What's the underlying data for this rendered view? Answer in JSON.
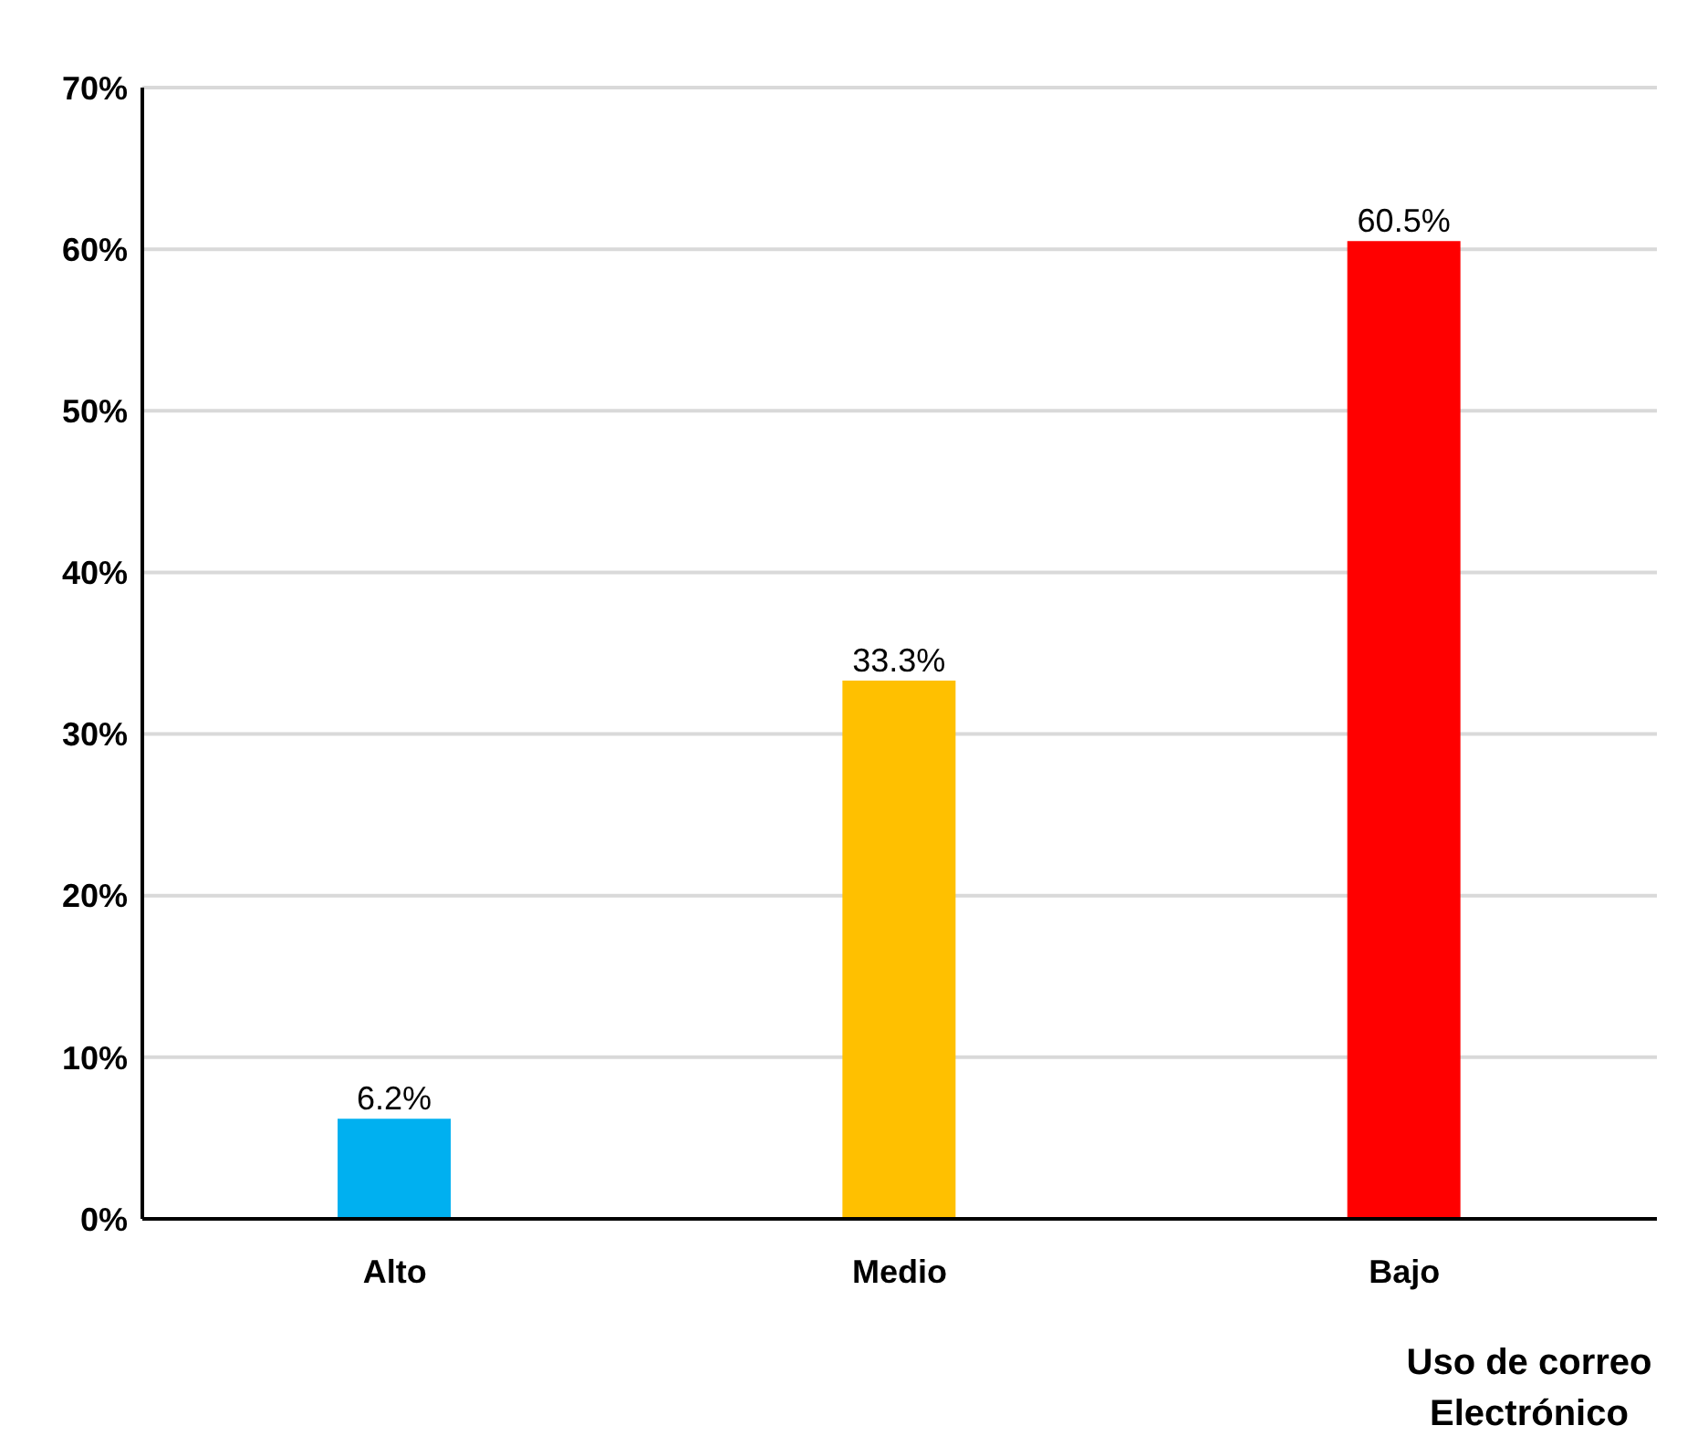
{
  "chart_data": {
    "type": "bar",
    "xlabel": "Uso de correo Electrónico",
    "categories": [
      "Alto",
      "Medio",
      "Bajo"
    ],
    "values": [
      6.2,
      33.3,
      60.5
    ],
    "colors": [
      "#00b0f0",
      "#ffc000",
      "#ff0000"
    ],
    "value_labels": [
      "6.2%",
      "33.3%",
      "60.5%"
    ],
    "ylim": [
      0,
      70
    ],
    "yticks": [
      {
        "value": 0,
        "label": "0%"
      },
      {
        "value": 10,
        "label": "10%"
      },
      {
        "value": 20,
        "label": "20%"
      },
      {
        "value": 30,
        "label": "30%"
      },
      {
        "value": 40,
        "label": "40%"
      },
      {
        "value": 50,
        "label": "50%"
      },
      {
        "value": 60,
        "label": "60%"
      },
      {
        "value": 70,
        "label": "70%"
      }
    ],
    "grid": "y",
    "legend": false
  }
}
